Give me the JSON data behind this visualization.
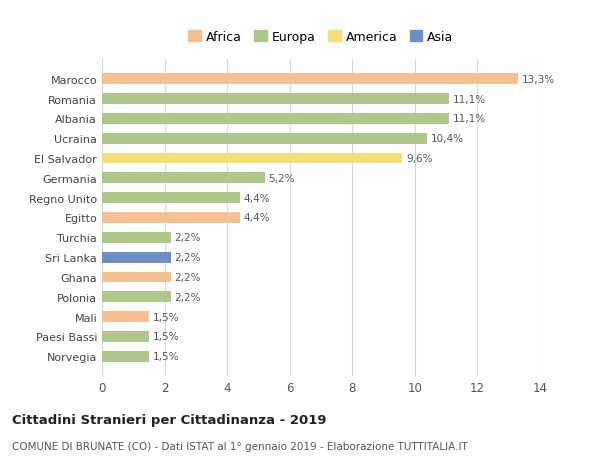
{
  "categories": [
    "Marocco",
    "Romania",
    "Albania",
    "Ucraina",
    "El Salvador",
    "Germania",
    "Regno Unito",
    "Egitto",
    "Turchia",
    "Sri Lanka",
    "Ghana",
    "Polonia",
    "Mali",
    "Paesi Bassi",
    "Norvegia"
  ],
  "values": [
    13.3,
    11.1,
    11.1,
    10.4,
    9.6,
    5.2,
    4.4,
    4.4,
    2.2,
    2.2,
    2.2,
    2.2,
    1.5,
    1.5,
    1.5
  ],
  "labels": [
    "13,3%",
    "11,1%",
    "11,1%",
    "10,4%",
    "9,6%",
    "5,2%",
    "4,4%",
    "4,4%",
    "2,2%",
    "2,2%",
    "2,2%",
    "2,2%",
    "1,5%",
    "1,5%",
    "1,5%"
  ],
  "colors": [
    "#f5c191",
    "#adc eighteen",
    "#adc888",
    "#adc888",
    "#f5de7a",
    "#adc888",
    "#adc888",
    "#f5c191",
    "#adc888",
    "#6b8ec8",
    "#f5c191",
    "#adc888",
    "#f5c191",
    "#adc888",
    "#adc888"
  ],
  "bar_colors": [
    "#f5c191",
    "#adc888",
    "#adc888",
    "#adc888",
    "#f5de7a",
    "#adc888",
    "#adc888",
    "#f5c191",
    "#adc888",
    "#6b8ec8",
    "#f5c191",
    "#adc888",
    "#f5c191",
    "#adc888",
    "#adc888"
  ],
  "legend": [
    {
      "label": "Africa",
      "color": "#f5c191"
    },
    {
      "label": "Europa",
      "color": "#adc888"
    },
    {
      "label": "America",
      "color": "#f5de7a"
    },
    {
      "label": "Asia",
      "color": "#6b8ec8"
    }
  ],
  "title": "Cittadini Stranieri per Cittadinanza - 2019",
  "subtitle": "COMUNE DI BRUNATE (CO) - Dati ISTAT al 1° gennaio 2019 - Elaborazione TUTTITALIA.IT",
  "xlim": [
    0,
    14
  ],
  "xticks": [
    0,
    2,
    4,
    6,
    8,
    10,
    12,
    14
  ],
  "background_color": "#ffffff",
  "grid_color": "#d8d8d8"
}
